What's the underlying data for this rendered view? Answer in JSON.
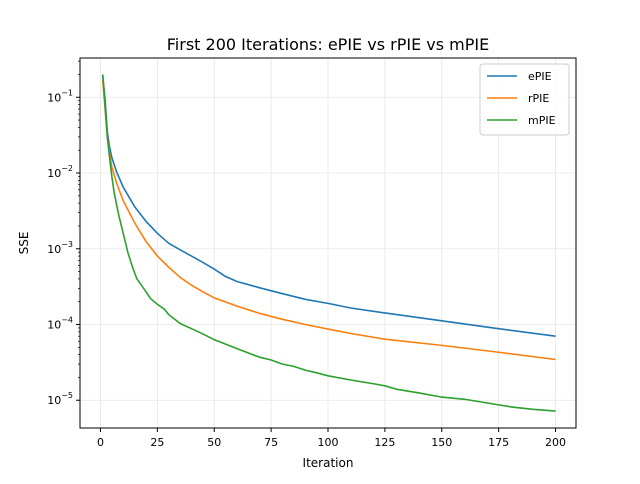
{
  "chart_data": {
    "type": "line",
    "title": "First 200 Iterations: ePIE vs rPIE vs mPIE",
    "xlabel": "Iteration",
    "ylabel": "SSE",
    "yscale": "log",
    "xlim": [
      -9,
      209
    ],
    "ylim": [
      4.3e-06,
      0.33
    ],
    "grid": true,
    "legend": "top-right",
    "x_ticks": [
      0,
      25,
      50,
      75,
      100,
      125,
      150,
      175,
      200
    ],
    "y_ticks": [
      {
        "value": 1e-05,
        "base": "10",
        "exp": "−5"
      },
      {
        "value": 0.0001,
        "base": "10",
        "exp": "−4"
      },
      {
        "value": 0.001,
        "base": "10",
        "exp": "−3"
      },
      {
        "value": 0.01,
        "base": "10",
        "exp": "−2"
      },
      {
        "value": 0.1,
        "base": "10",
        "exp": "−1"
      }
    ],
    "series": [
      {
        "name": "ePIE",
        "color": "#1f77b4",
        "points": [
          [
            1,
            0.19
          ],
          [
            2,
            0.095
          ],
          [
            3,
            0.035
          ],
          [
            4,
            0.022
          ],
          [
            5,
            0.016
          ],
          [
            7,
            0.0105
          ],
          [
            10,
            0.0065
          ],
          [
            15,
            0.0036
          ],
          [
            20,
            0.0023
          ],
          [
            25,
            0.0016
          ],
          [
            30,
            0.00118
          ],
          [
            35,
            0.00097
          ],
          [
            40,
            0.0008
          ],
          [
            45,
            0.00066
          ],
          [
            50,
            0.00054
          ],
          [
            55,
            0.00043
          ],
          [
            60,
            0.00037
          ],
          [
            70,
            0.000305
          ],
          [
            80,
            0.000255
          ],
          [
            90,
            0.000215
          ],
          [
            100,
            0.00019
          ],
          [
            110,
            0.000165
          ],
          [
            125,
            0.000142
          ],
          [
            150,
            0.000112
          ],
          [
            175,
            8.8e-05
          ],
          [
            200,
            7e-05
          ]
        ]
      },
      {
        "name": "rPIE",
        "color": "#ff7f0e",
        "points": [
          [
            1,
            0.17
          ],
          [
            2,
            0.07
          ],
          [
            3,
            0.03
          ],
          [
            4,
            0.018
          ],
          [
            5,
            0.012
          ],
          [
            7,
            0.0075
          ],
          [
            10,
            0.0043
          ],
          [
            15,
            0.0022
          ],
          [
            20,
            0.00125
          ],
          [
            25,
            0.0008
          ],
          [
            30,
            0.00057
          ],
          [
            35,
            0.00042
          ],
          [
            40,
            0.00033
          ],
          [
            45,
            0.00027
          ],
          [
            50,
            0.000225
          ],
          [
            60,
            0.000175
          ],
          [
            70,
            0.00014
          ],
          [
            80,
            0.000117
          ],
          [
            90,
            0.0001
          ],
          [
            100,
            8.7e-05
          ],
          [
            110,
            7.6e-05
          ],
          [
            125,
            6.4e-05
          ],
          [
            150,
            5.3e-05
          ],
          [
            175,
            4.3e-05
          ],
          [
            200,
            3.45e-05
          ]
        ]
      },
      {
        "name": "mPIE",
        "color": "#2ca02c",
        "points": [
          [
            1,
            0.2
          ],
          [
            2,
            0.08
          ],
          [
            3,
            0.03
          ],
          [
            4,
            0.016
          ],
          [
            5,
            0.009
          ],
          [
            6,
            0.0055
          ],
          [
            8,
            0.0028
          ],
          [
            10,
            0.0016
          ],
          [
            12,
            0.0009
          ],
          [
            14,
            0.00058
          ],
          [
            16,
            0.0004
          ],
          [
            18,
            0.00033
          ],
          [
            20,
            0.00027
          ],
          [
            22,
            0.00022
          ],
          [
            25,
            0.000185
          ],
          [
            28,
            0.00016
          ],
          [
            30,
            0.000135
          ],
          [
            33,
            0.000115
          ],
          [
            35,
            0.000103
          ],
          [
            40,
            8.8e-05
          ],
          [
            45,
            7.5e-05
          ],
          [
            50,
            6.3e-05
          ],
          [
            55,
            5.5e-05
          ],
          [
            60,
            4.8e-05
          ],
          [
            65,
            4.2e-05
          ],
          [
            70,
            3.7e-05
          ],
          [
            75,
            3.4e-05
          ],
          [
            80,
            3e-05
          ],
          [
            85,
            2.8e-05
          ],
          [
            90,
            2.5e-05
          ],
          [
            95,
            2.3e-05
          ],
          [
            100,
            2.1e-05
          ],
          [
            110,
            1.85e-05
          ],
          [
            120,
            1.65e-05
          ],
          [
            125,
            1.55e-05
          ],
          [
            130,
            1.4e-05
          ],
          [
            140,
            1.25e-05
          ],
          [
            150,
            1.1e-05
          ],
          [
            160,
            1.03e-05
          ],
          [
            170,
            9.2e-06
          ],
          [
            180,
            8.2e-06
          ],
          [
            190,
            7.6e-06
          ],
          [
            200,
            7.2e-06
          ]
        ]
      }
    ]
  }
}
